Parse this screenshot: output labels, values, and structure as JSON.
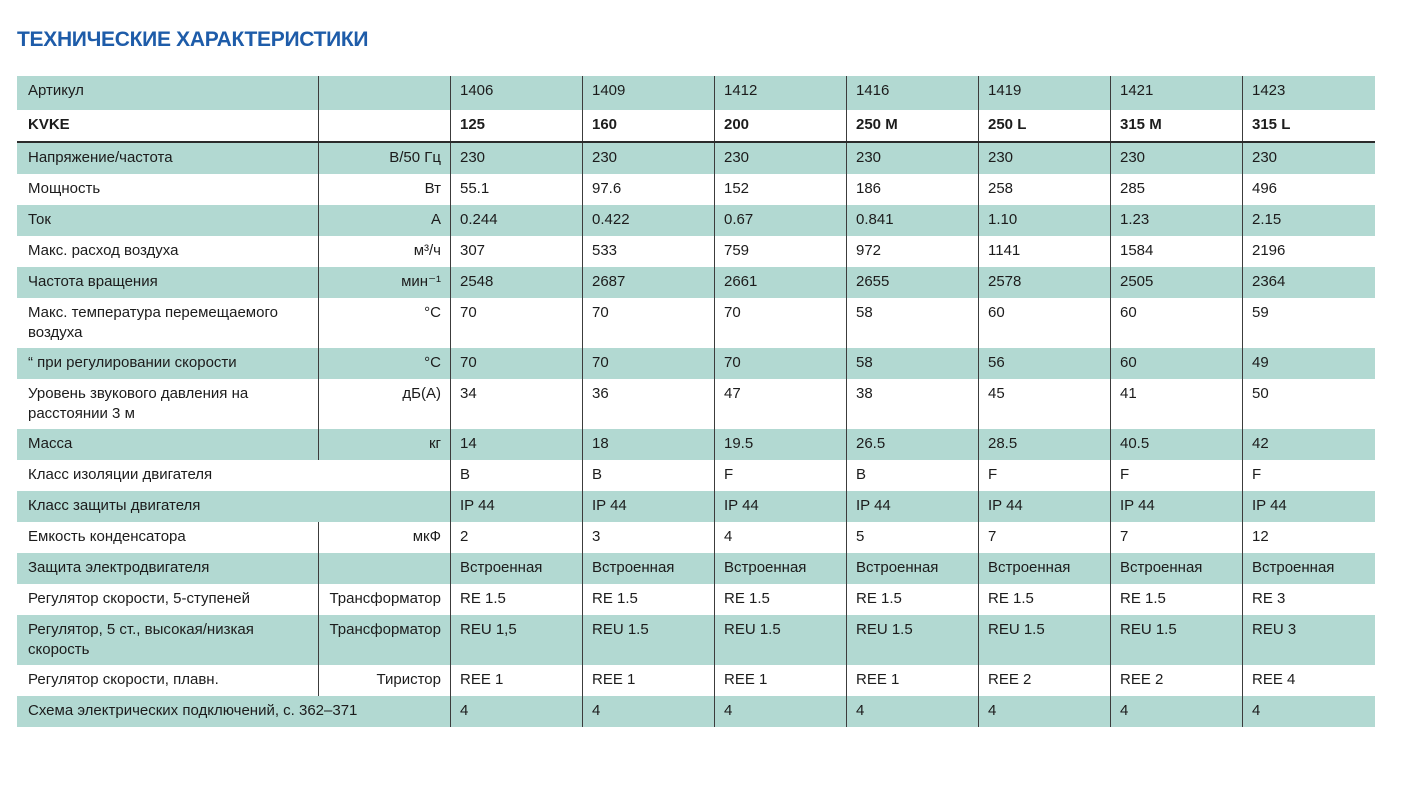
{
  "page": {
    "title": "ТЕХНИЧЕСКИЕ ХАРАКТЕРИСТИКИ"
  },
  "colors": {
    "title_blue": "#1e5ca9",
    "row_teal": "#b2d9d2",
    "grid_line": "#3c3c3c",
    "header_separator": "#2b2b2b"
  },
  "table": {
    "rows": [
      {
        "label": "Артикул",
        "unit": "",
        "values": [
          "1406",
          "1409",
          "1412",
          "1416",
          "1419",
          "1421",
          "1423"
        ]
      },
      {
        "label": "KVKE",
        "unit": "",
        "values": [
          "125",
          "160",
          "200",
          "250 M",
          "250 L",
          "315 M",
          "315 L"
        ]
      },
      {
        "label": "Напряжение/частота",
        "unit": "В/50 Гц",
        "values": [
          "230",
          "230",
          "230",
          "230",
          "230",
          "230",
          "230"
        ]
      },
      {
        "label": "Мощность",
        "unit": "Вт",
        "values": [
          "55.1",
          "97.6",
          "152",
          "186",
          "258",
          "285",
          "496"
        ]
      },
      {
        "label": "Ток",
        "unit": "А",
        "values": [
          "0.244",
          "0.422",
          "0.67",
          "0.841",
          "1.10",
          "1.23",
          "2.15"
        ]
      },
      {
        "label": "Макс. расход воздуха",
        "unit": "м³/ч",
        "values": [
          "307",
          "533",
          "759",
          "972",
          "1141",
          "1584",
          "2196"
        ]
      },
      {
        "label": "Частота вращения",
        "unit": "мин⁻¹",
        "values": [
          "2548",
          "2687",
          "2661",
          "2655",
          "2578",
          "2505",
          "2364"
        ]
      },
      {
        "label": "Макс. температура перемещаемого воздуха",
        "unit": "°C",
        "values": [
          "70",
          "70",
          "70",
          "58",
          "60",
          "60",
          "59"
        ]
      },
      {
        "label": "“ при регулировании скорости",
        "unit": "°C",
        "values": [
          "70",
          "70",
          "70",
          "58",
          "56",
          "60",
          "49"
        ]
      },
      {
        "label": "Уровень звукового давления на расстоянии 3 м",
        "unit": "дБ(А)",
        "values": [
          "34",
          "36",
          "47",
          "38",
          "45",
          "41",
          "50"
        ]
      },
      {
        "label": "Масса",
        "unit": "кг",
        "values": [
          "14",
          "18",
          "19.5",
          "26.5",
          "28.5",
          "40.5",
          "42"
        ]
      },
      {
        "label": "Класс изоляции двигателя",
        "unit": null,
        "values": [
          "B",
          "B",
          "F",
          "B",
          "F",
          "F",
          "F"
        ]
      },
      {
        "label": "Класс защиты двигателя",
        "unit": null,
        "values": [
          "IP 44",
          "IP 44",
          "IP 44",
          "IP 44",
          "IP 44",
          "IP 44",
          "IP 44"
        ]
      },
      {
        "label": "Емкость конденсатора",
        "unit": "мкФ",
        "values": [
          "2",
          "3",
          "4",
          "5",
          "7",
          "7",
          "12"
        ]
      },
      {
        "label": "Защита электродвигателя",
        "unit": "",
        "values": [
          "Встроенная",
          "Встроенная",
          "Встроенная",
          "Встроенная",
          "Встроенная",
          "Встроенная",
          "Встроенная"
        ]
      },
      {
        "label": "Регулятор скорости, 5-ступеней",
        "unit": "Трансформатор",
        "values": [
          "RE 1.5",
          "RE 1.5",
          "RE 1.5",
          "RE 1.5",
          "RE 1.5",
          "RE 1.5",
          "RE 3"
        ]
      },
      {
        "label": "Регулятор, 5 ст., высокая/низкая скорость",
        "unit": "Трансформатор",
        "values": [
          "REU 1,5",
          "REU 1.5",
          "REU 1.5",
          "REU 1.5",
          "REU 1.5",
          "REU 1.5",
          "REU 3"
        ]
      },
      {
        "label": "Регулятор скорости, плавн.",
        "unit": "Тиристор",
        "values": [
          "REE 1",
          "REE 1",
          "REE 1",
          "REE 1",
          "REE 2",
          "REE 2",
          "REE 4"
        ]
      },
      {
        "label": "Схема электрических подключений, с. 362–371",
        "unit": null,
        "values": [
          "4",
          "4",
          "4",
          "4",
          "4",
          "4",
          "4"
        ]
      }
    ]
  }
}
